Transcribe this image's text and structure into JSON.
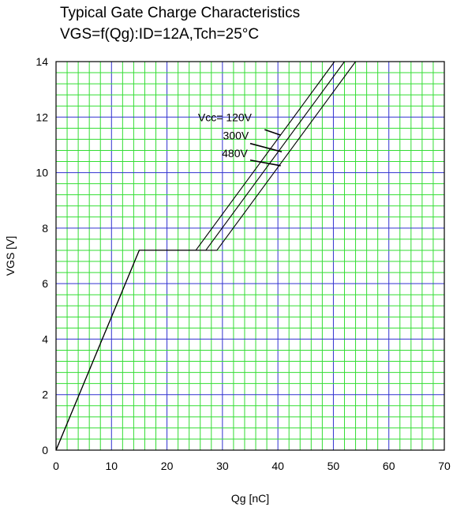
{
  "chart_data": {
    "type": "line",
    "title": "Typical Gate Charge Characteristics",
    "subtitle": "VGS=f(Qg):ID=12A,Tch=25°C",
    "xlabel": "Qg [nC]",
    "ylabel": "VGS [V]",
    "xlim": [
      0,
      70
    ],
    "ylim": [
      0,
      14
    ],
    "x_ticks": [
      0,
      10,
      20,
      30,
      40,
      50,
      60,
      70
    ],
    "y_ticks": [
      0,
      2,
      4,
      6,
      8,
      10,
      12,
      14
    ],
    "grid": true,
    "series": [
      {
        "name": "Vcc= 120V",
        "points": [
          [
            0,
            0
          ],
          [
            15,
            7.2
          ],
          [
            25.2,
            7.2
          ],
          [
            50.2,
            14
          ]
        ]
      },
      {
        "name": "300V",
        "points": [
          [
            0,
            0
          ],
          [
            15,
            7.2
          ],
          [
            27,
            7.2
          ],
          [
            52,
            14
          ]
        ]
      },
      {
        "name": "480V",
        "points": [
          [
            0,
            0
          ],
          [
            15,
            7.2
          ],
          [
            29,
            7.2
          ],
          [
            54,
            14
          ]
        ]
      }
    ],
    "annotations": [
      {
        "text": "Vcc= 120V",
        "series": "Vcc= 120V"
      },
      {
        "text": "300V",
        "series": "300V"
      },
      {
        "text": "480V",
        "series": "480V"
      }
    ]
  }
}
